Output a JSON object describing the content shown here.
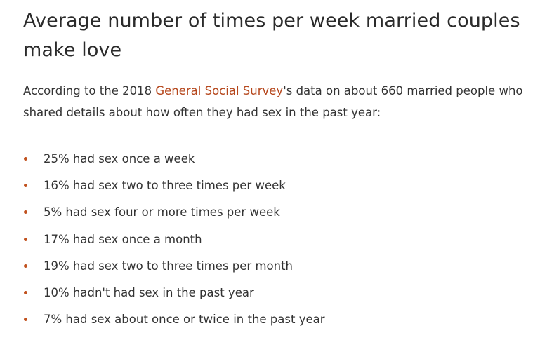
{
  "article": {
    "title": "Average number of times per week married couples make love",
    "intro_before_link": "According to the 2018 ",
    "intro_link": "General Social Survey",
    "intro_after_link": "'s data on about 660 married people who shared details about how often they had sex in the past year:",
    "stats": [
      "25% had sex once a week",
      "16% had sex two to three times per week",
      "5% had sex four or more times per week",
      "17% had sex once a month",
      "19% had sex two to three times per month",
      "10% hadn't had sex in the past year",
      "7% had sex about once or twice in the past year"
    ]
  },
  "colors": {
    "link": "#b5461b",
    "bullet": "#c1521f",
    "text": "#333333"
  }
}
